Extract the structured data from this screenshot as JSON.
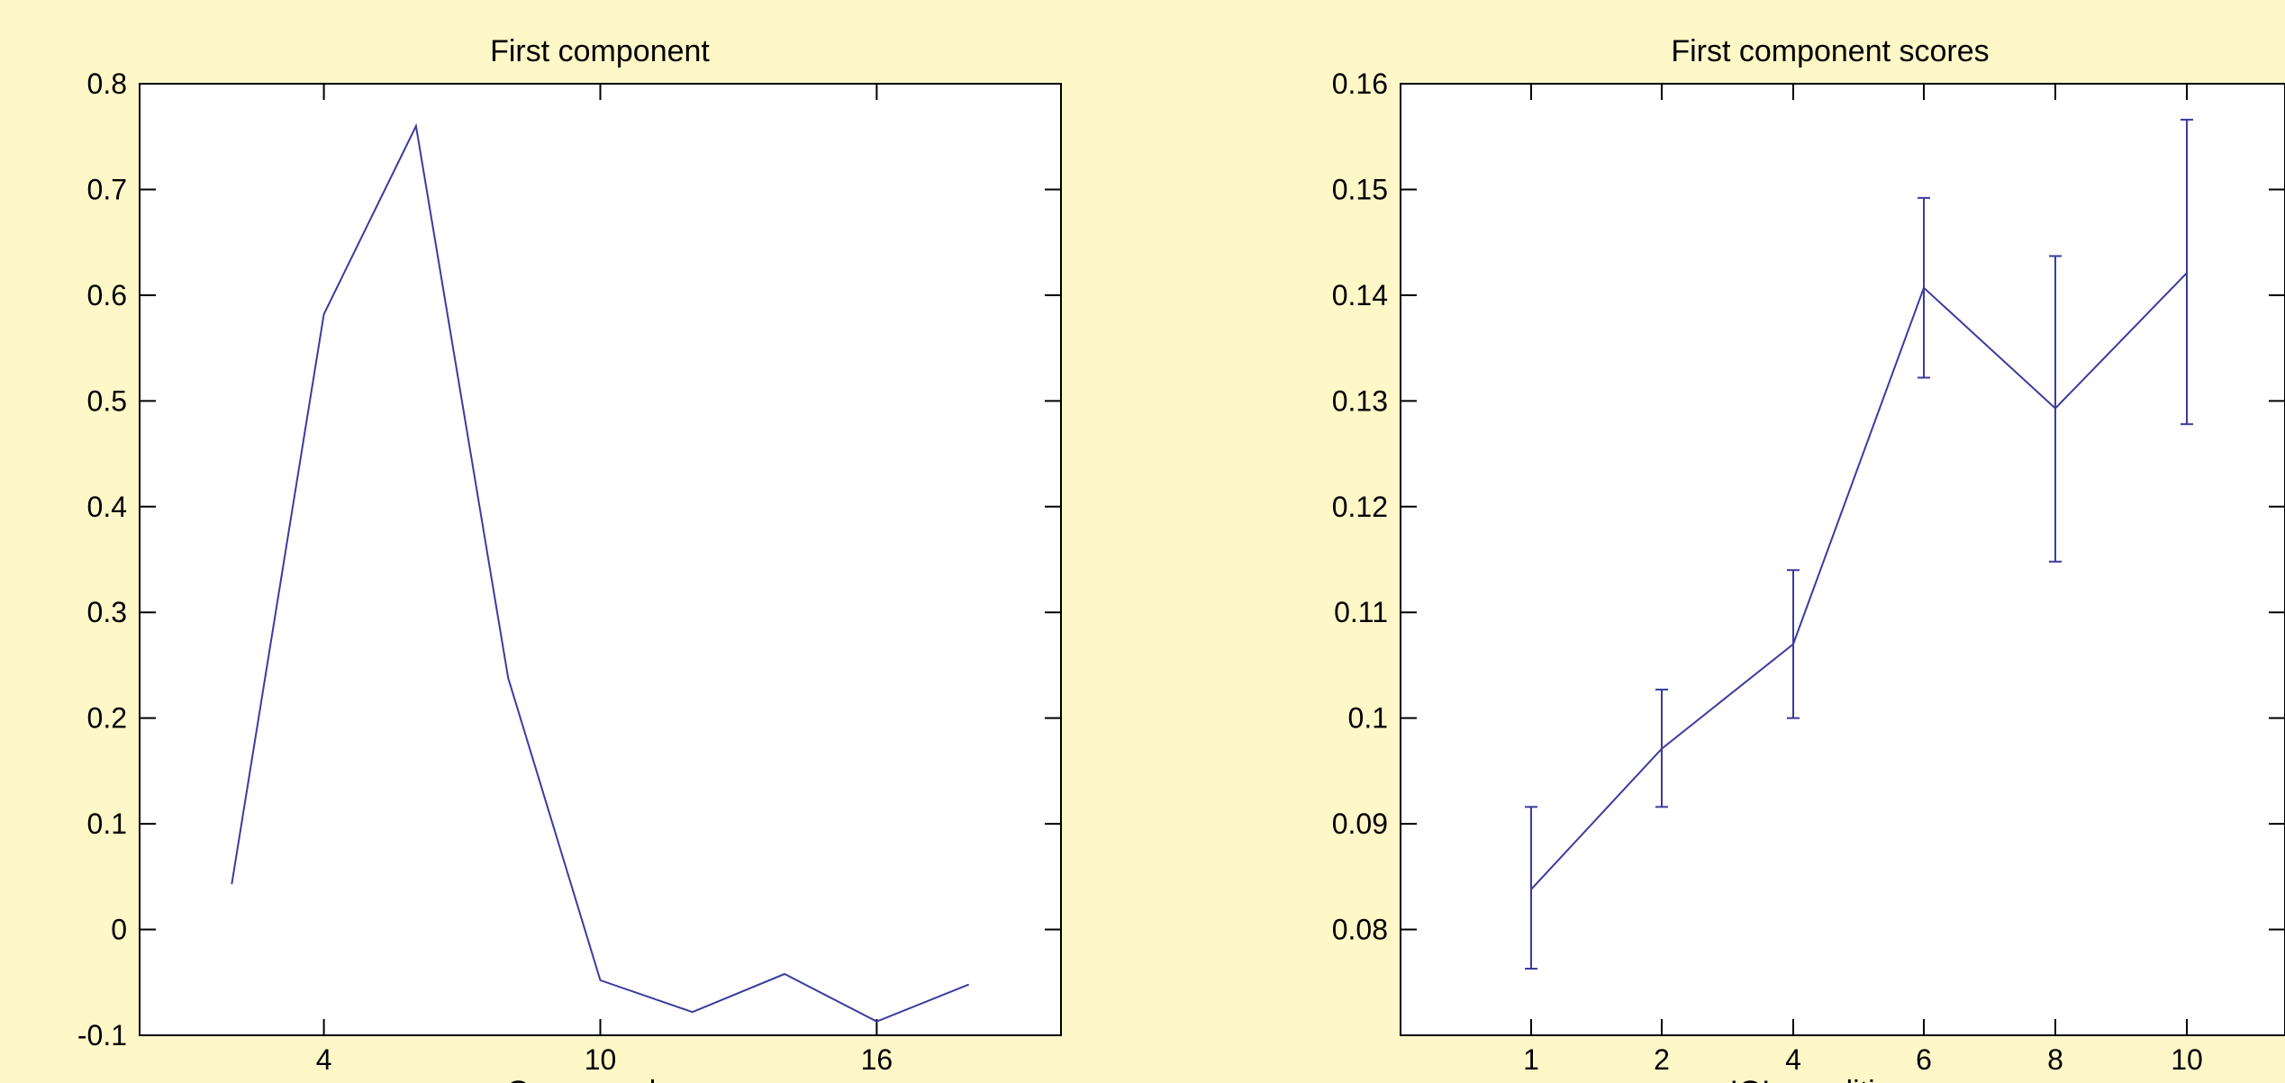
{
  "colors": {
    "background": "#fef7c7",
    "plot_area": "#ffffff",
    "series": "#3b3b9e",
    "axis": "#000000"
  },
  "chart_data": [
    {
      "type": "line",
      "title": "First component",
      "xlabel": "Gene number",
      "ylabel": "",
      "xlim": [
        0,
        20
      ],
      "ylim": [
        -0.1,
        0.8
      ],
      "xticks": [
        4,
        10,
        16
      ],
      "yticks": [
        -0.1,
        0,
        0.1,
        0.2,
        0.3,
        0.4,
        0.5,
        0.6,
        0.7,
        0.8
      ],
      "yticklabels": [
        "-0.1",
        "0",
        "0.1",
        "0.2",
        "0.3",
        "0.4",
        "0.5",
        "0.6",
        "0.7",
        "0.8"
      ],
      "grid": false,
      "series": [
        {
          "x": [
            2,
            4,
            6,
            8,
            10,
            12,
            14,
            16,
            18
          ],
          "y": [
            0.043,
            0.582,
            0.76,
            0.238,
            -0.048,
            -0.078,
            -0.042,
            -0.087,
            -0.052
          ]
        }
      ]
    },
    {
      "type": "line",
      "title": "First component scores",
      "xlabel": "IGL condition",
      "ylabel": "",
      "x_axis_kind": "categorical",
      "categories": [
        "1",
        "2",
        "4",
        "6",
        "8",
        "10"
      ],
      "ylim": [
        0.07,
        0.16
      ],
      "yticks": [
        0.08,
        0.09,
        0.1,
        0.11,
        0.12,
        0.13,
        0.14,
        0.15,
        0.16
      ],
      "yticklabels": [
        "0.08",
        "0.09",
        "0.1",
        "0.11",
        "0.12",
        "0.13",
        "0.14",
        "0.15",
        "0.16"
      ],
      "grid": false,
      "series": [
        {
          "values": [
            0.0838,
            0.0971,
            0.107,
            0.1407,
            0.1293,
            0.1421
          ],
          "error_low": [
            0.0763,
            0.0916,
            0.1,
            0.1322,
            0.1148,
            0.1278
          ],
          "error_high": [
            0.0916,
            0.1027,
            0.114,
            0.1492,
            0.1437,
            0.1566
          ]
        }
      ]
    }
  ]
}
